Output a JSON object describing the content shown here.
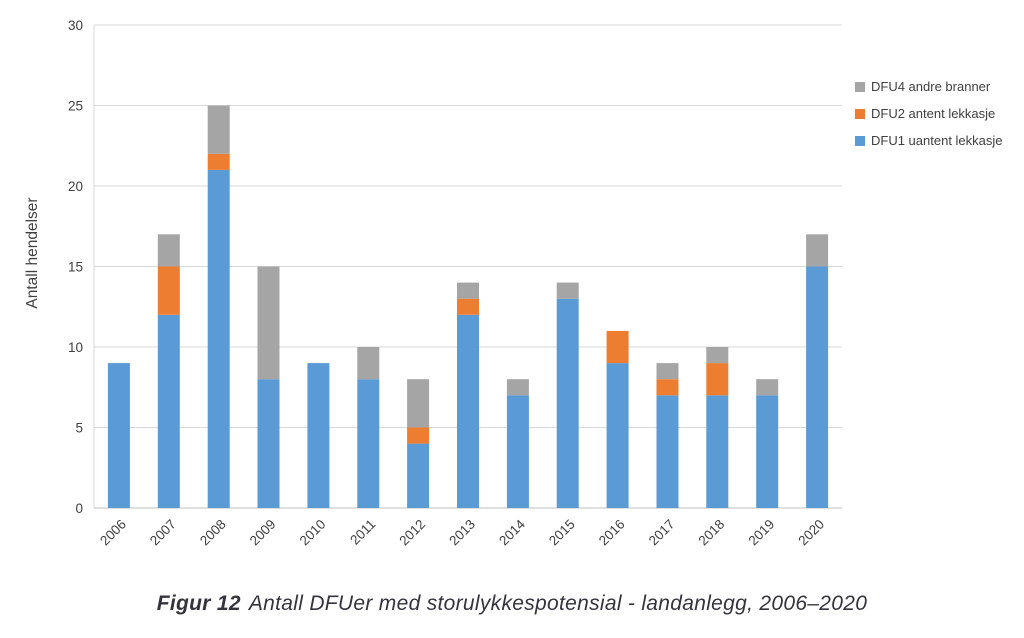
{
  "chart_data": {
    "type": "bar",
    "stacked": true,
    "title": "",
    "xlabel": "",
    "ylabel": "Antall hendelser",
    "ylim": [
      0,
      30
    ],
    "ytick_step": 5,
    "grid": true,
    "categories": [
      "2006",
      "2007",
      "2008",
      "2009",
      "2010",
      "2011",
      "2012",
      "2013",
      "2014",
      "2015",
      "2016",
      "2017",
      "2018",
      "2019",
      "2020"
    ],
    "series": [
      {
        "name": "DFU1 uantent lekkasje",
        "color": "#5B9BD5",
        "values": [
          9,
          12,
          21,
          8,
          9,
          8,
          4,
          12,
          7,
          13,
          9,
          7,
          7,
          7,
          15
        ]
      },
      {
        "name": "DFU2 antent lekkasje",
        "color": "#ED7D31",
        "values": [
          0,
          3,
          1,
          0,
          0,
          0,
          1,
          1,
          0,
          0,
          2,
          1,
          2,
          0,
          0
        ]
      },
      {
        "name": "DFU4 andre branner",
        "color": "#A5A5A5",
        "values": [
          0,
          2,
          3,
          7,
          0,
          2,
          3,
          1,
          1,
          1,
          0,
          1,
          1,
          1,
          2
        ]
      }
    ],
    "totals": [
      9,
      17,
      25,
      15,
      9,
      10,
      8,
      14,
      8,
      14,
      11,
      9,
      10,
      8,
      17
    ],
    "legend": {
      "position": "right",
      "order": [
        "DFU4 andre branner",
        "DFU2 antent lekkasje",
        "DFU1 uantent lekkasje"
      ]
    },
    "colors": {
      "gridline": "#D9D9D9",
      "axis_line": "#BFBFBF",
      "tick_text": "#404040"
    }
  },
  "caption": {
    "label": "Figur 12",
    "text": "Antall DFUer med storulykkespotensial - landanlegg, 2006–2020"
  }
}
